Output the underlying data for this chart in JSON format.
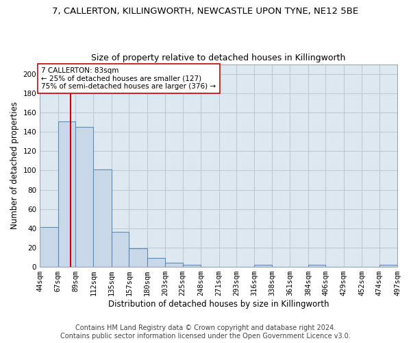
{
  "title_line1": "7, CALLERTON, KILLINGWORTH, NEWCASTLE UPON TYNE, NE12 5BE",
  "title_line2": "Size of property relative to detached houses in Killingworth",
  "xlabel": "Distribution of detached houses by size in Killingworth",
  "ylabel": "Number of detached properties",
  "footer_line1": "Contains HM Land Registry data © Crown copyright and database right 2024.",
  "footer_line2": "Contains public sector information licensed under the Open Government Licence v3.0.",
  "bin_labels": [
    "44sqm",
    "67sqm",
    "89sqm",
    "112sqm",
    "135sqm",
    "157sqm",
    "180sqm",
    "203sqm",
    "225sqm",
    "248sqm",
    "271sqm",
    "293sqm",
    "316sqm",
    "338sqm",
    "361sqm",
    "384sqm",
    "406sqm",
    "429sqm",
    "452sqm",
    "474sqm",
    "497sqm"
  ],
  "bin_edges": [
    44,
    67,
    89,
    112,
    135,
    157,
    180,
    203,
    225,
    248,
    271,
    293,
    316,
    338,
    361,
    384,
    406,
    429,
    452,
    474,
    497
  ],
  "bar_heights": [
    41,
    151,
    145,
    101,
    36,
    19,
    9,
    4,
    2,
    0,
    0,
    0,
    2,
    0,
    0,
    2,
    0,
    0,
    0,
    2,
    0
  ],
  "bar_color": "#c8d8e8",
  "bar_edge_color": "#5b8db8",
  "bar_edge_width": 0.8,
  "grid_color": "#c0c8d8",
  "background_color": "#dde8f0",
  "vline_x": 83,
  "vline_color": "#cc0000",
  "annotation_line1": "7 CALLERTON: 83sqm",
  "annotation_line2": "← 25% of detached houses are smaller (127)",
  "annotation_line3": "75% of semi-detached houses are larger (376) →",
  "annotation_box_color": "#ffffff",
  "annotation_box_edge": "#cc0000",
  "ylim": [
    0,
    210
  ],
  "yticks": [
    0,
    20,
    40,
    60,
    80,
    100,
    120,
    140,
    160,
    180,
    200
  ],
  "title_fontsize": 9.5,
  "subtitle_fontsize": 9,
  "axis_label_fontsize": 8.5,
  "tick_fontsize": 7.5,
  "footer_fontsize": 7
}
